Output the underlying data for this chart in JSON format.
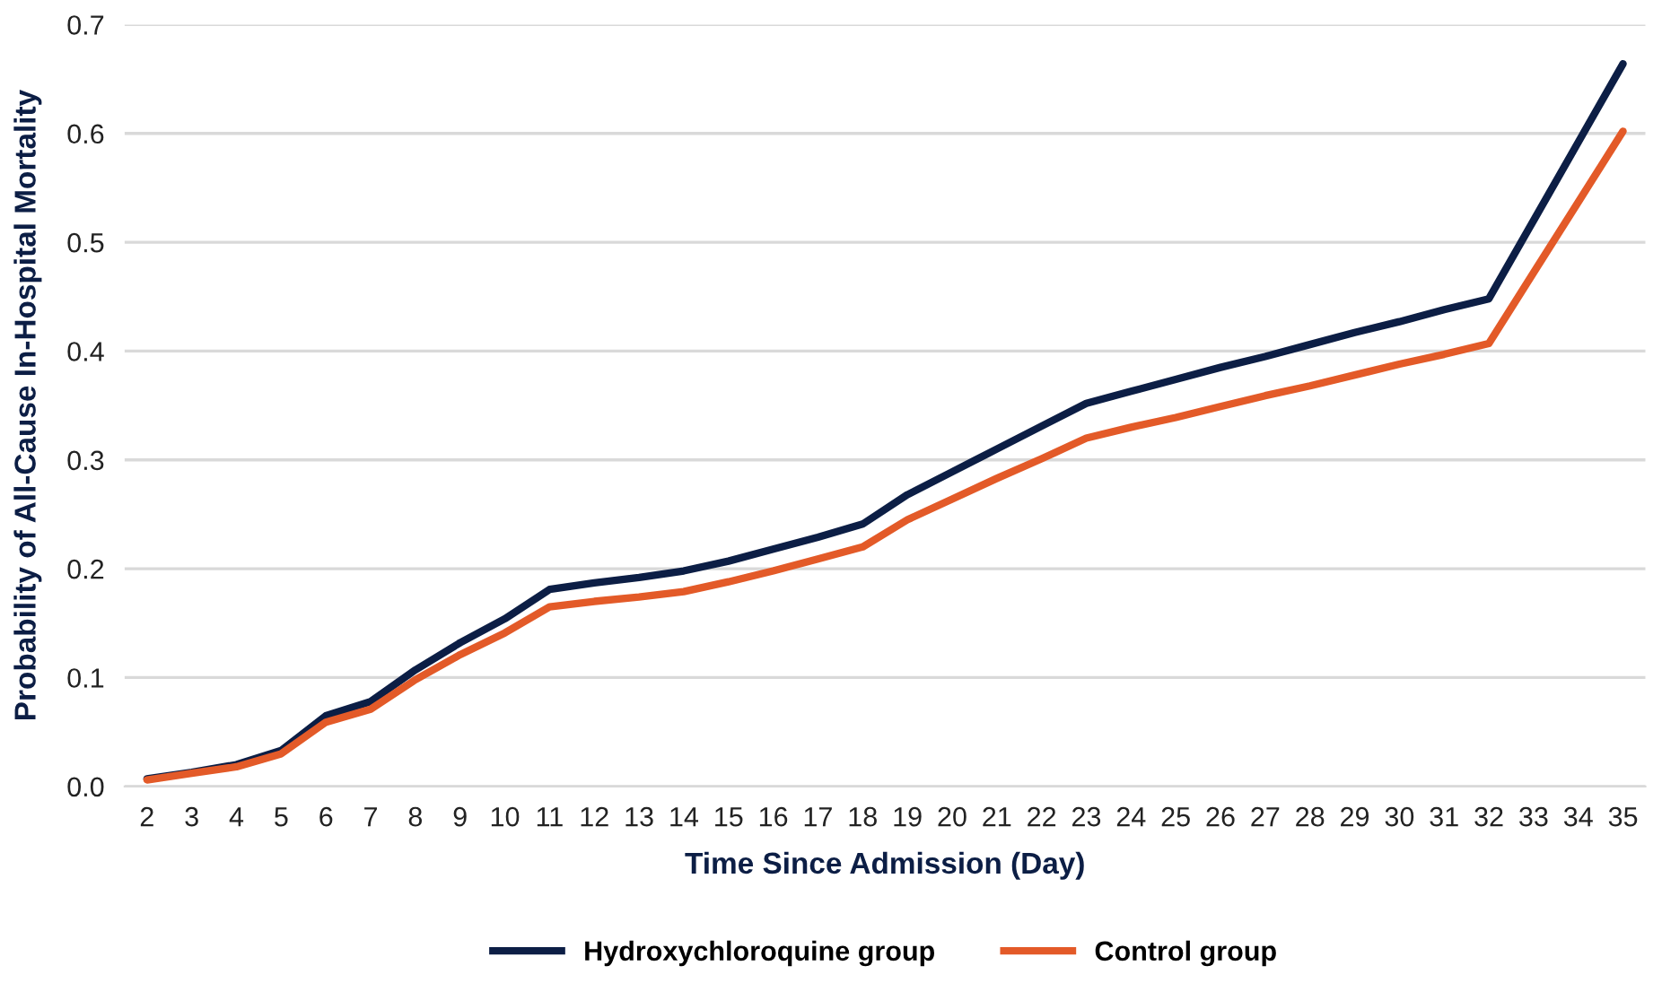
{
  "chart_data": {
    "type": "line",
    "xlabel": "Time Since Admission (Day)",
    "ylabel": "Probability of All-Cause In-Hospital Mortality",
    "categories": [
      "2",
      "3",
      "4",
      "5",
      "6",
      "7",
      "8",
      "9",
      "10",
      "11",
      "12",
      "13",
      "14",
      "15",
      "16",
      "17",
      "18",
      "19",
      "20",
      "21",
      "22",
      "23",
      "24",
      "25",
      "26",
      "27",
      "28",
      "29",
      "30",
      "31",
      "32",
      "33",
      "34",
      "35"
    ],
    "series": [
      {
        "name": "Hydroxychloroquine group",
        "color": "#0c1e45",
        "values": [
          0.007,
          0.013,
          0.02,
          0.033,
          0.065,
          0.078,
          0.107,
          0.132,
          0.154,
          0.181,
          0.187,
          0.192,
          0.198,
          0.207,
          0.218,
          0.229,
          0.241,
          0.268,
          0.289,
          0.31,
          0.331,
          0.352,
          0.363,
          0.374,
          0.385,
          0.395,
          0.406,
          0.417,
          0.427,
          0.438,
          0.448,
          0.52,
          0.592,
          0.664
        ]
      },
      {
        "name": "Control group",
        "color": "#e35a28",
        "values": [
          0.006,
          0.012,
          0.018,
          0.03,
          0.059,
          0.071,
          0.098,
          0.121,
          0.141,
          0.165,
          0.17,
          0.174,
          0.179,
          0.188,
          0.198,
          0.209,
          0.22,
          0.245,
          0.264,
          0.283,
          0.301,
          0.32,
          0.33,
          0.339,
          0.349,
          0.359,
          0.368,
          0.378,
          0.388,
          0.397,
          0.407,
          0.472,
          0.537,
          0.602
        ]
      }
    ],
    "ylim": [
      0,
      0.7
    ],
    "yticks": [
      {
        "value": 0,
        "label": "0.0"
      },
      0.1,
      0.2,
      0.3,
      0.4,
      0.5,
      0.6,
      0.7
    ],
    "grid": "y",
    "legend": "bottom",
    "marker": "none",
    "line_style": "solid"
  }
}
